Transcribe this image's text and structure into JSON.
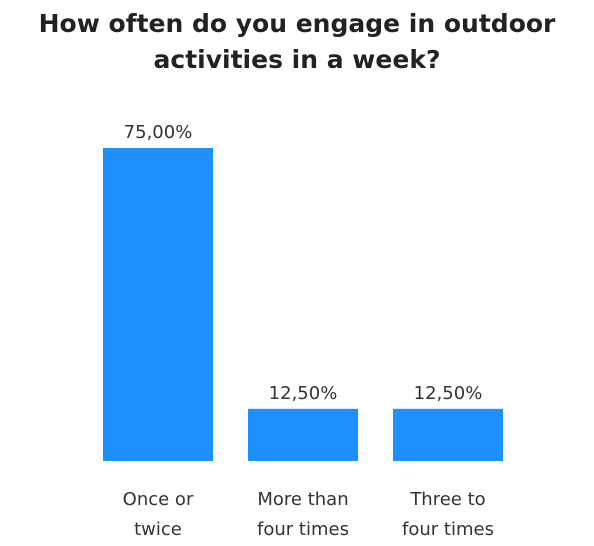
{
  "chart_data": {
    "type": "bar",
    "title": [
      "How often do you engage in outdoor",
      "activities in a week?"
    ],
    "categories": [
      [
        "Once or",
        "twice"
      ],
      [
        "More than",
        "four times"
      ],
      [
        "Three to",
        "four times"
      ]
    ],
    "values": [
      75,
      12.5,
      12.5
    ],
    "value_labels": [
      "75,00%",
      "12,50%",
      "12,50%"
    ],
    "ylim": [
      0,
      75
    ],
    "grid": false,
    "bar_color": "#1E90FF"
  }
}
